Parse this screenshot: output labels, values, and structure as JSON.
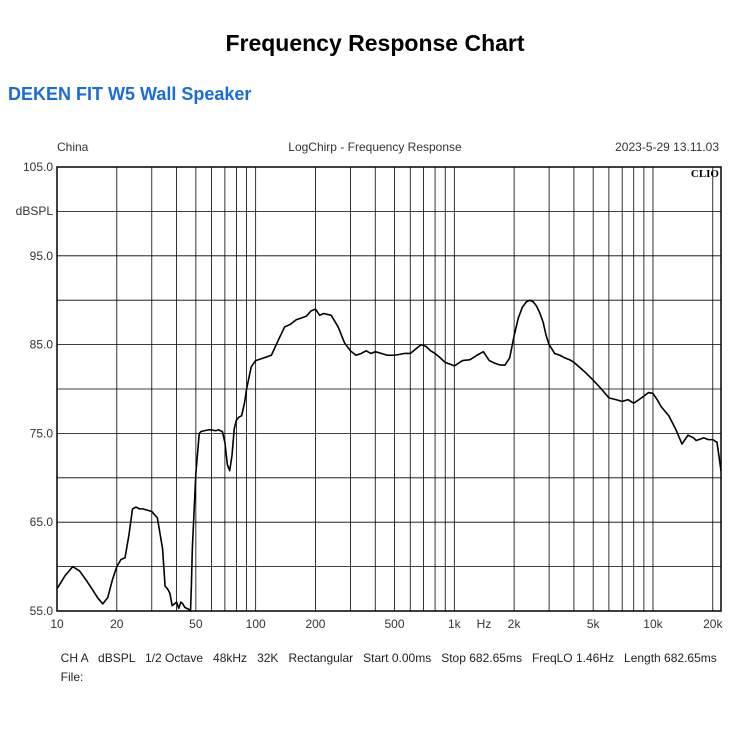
{
  "page": {
    "title": "Frequency Response Chart",
    "subtitle": "DEKEN FIT W5 Wall Speaker"
  },
  "colors": {
    "subtitle": "#1a6cd6",
    "curve": "#000000",
    "grid": "#000000"
  },
  "chart_data": {
    "type": "line",
    "title": "LogChirp - Frequency Response",
    "header_left": "China",
    "header_right": "2023-5-29 13.11.03",
    "brand": "CLIO",
    "ylabel": "dBSPL",
    "xunit": "Hz",
    "x_scale": "log",
    "grid": true,
    "xlim": [
      10,
      22000
    ],
    "ylim": [
      55,
      105
    ],
    "y_ticks": [
      "105.0",
      "95.0",
      "85.0",
      "75.0",
      "65.0",
      "55.0"
    ],
    "x_ticks": [
      "10",
      "20",
      "50",
      "100",
      "200",
      "500",
      "1k",
      "2k",
      "5k",
      "10k",
      "20k"
    ],
    "series": [
      {
        "x": [
          10,
          11,
          12,
          13,
          14,
          15,
          16,
          17,
          18,
          19,
          20,
          21,
          22,
          23,
          24,
          25,
          26,
          27,
          28,
          30,
          32,
          34,
          35,
          36,
          37,
          38,
          40,
          41,
          42,
          43,
          44,
          45,
          46,
          47,
          47.5,
          48,
          50,
          52,
          53,
          55,
          58,
          60,
          63,
          65,
          68,
          70,
          72,
          74,
          76,
          78,
          80,
          82,
          85,
          88,
          90,
          95,
          100,
          110,
          120,
          130,
          140,
          150,
          160,
          170,
          180,
          190,
          200,
          210,
          220,
          240,
          260,
          280,
          300,
          320,
          340,
          360,
          380,
          400,
          430,
          460,
          500,
          530,
          560,
          600,
          640,
          680,
          720,
          760,
          800,
          850,
          900,
          950,
          1000,
          1100,
          1200,
          1300,
          1400,
          1500,
          1600,
          1700,
          1800,
          1900,
          2000,
          2100,
          2200,
          2300,
          2400,
          2500,
          2600,
          2700,
          2800,
          2900,
          3000,
          3200,
          3400,
          3600,
          3800,
          4000,
          4500,
          5000,
          5500,
          6000,
          6500,
          7000,
          7500,
          8000,
          8500,
          9000,
          9500,
          10000,
          10500,
          11000,
          12000,
          13000,
          14000,
          15000,
          16000,
          16500,
          17000,
          18000,
          19000,
          20000,
          21000,
          22000
        ],
        "y": [
          57.5,
          59.0,
          60.0,
          59.5,
          58.5,
          57.5,
          56.5,
          55.8,
          56.5,
          58.5,
          60.0,
          60.8,
          61.0,
          63.5,
          66.5,
          66.7,
          66.5,
          66.5,
          66.4,
          66.2,
          65.5,
          62.0,
          57.8,
          57.5,
          57.0,
          55.6,
          56.0,
          55.3,
          56.0,
          55.8,
          55.4,
          55.3,
          55.2,
          55.0,
          58.0,
          62.0,
          70.5,
          75.0,
          75.2,
          75.3,
          75.4,
          75.4,
          75.3,
          75.4,
          75.2,
          74.0,
          71.5,
          70.8,
          72.5,
          75.5,
          76.5,
          76.8,
          77.0,
          78.5,
          80.0,
          82.5,
          83.2,
          83.5,
          83.8,
          85.5,
          87.0,
          87.3,
          87.8,
          88.0,
          88.2,
          88.8,
          89.0,
          88.3,
          88.5,
          88.3,
          87.0,
          85.2,
          84.3,
          83.8,
          84.0,
          84.3,
          84.0,
          84.2,
          84.0,
          83.8,
          83.8,
          83.9,
          84.0,
          84.0,
          84.5,
          85.0,
          84.8,
          84.3,
          84.0,
          83.5,
          83.0,
          82.8,
          82.6,
          83.2,
          83.3,
          83.8,
          84.2,
          83.2,
          82.9,
          82.7,
          82.7,
          83.5,
          86.0,
          88.0,
          89.2,
          89.8,
          90.0,
          89.8,
          89.3,
          88.5,
          87.5,
          86.0,
          85.0,
          84.0,
          83.8,
          83.5,
          83.3,
          83.0,
          82.0,
          81.0,
          80.0,
          79.0,
          78.8,
          78.6,
          78.8,
          78.4,
          78.8,
          79.2,
          79.6,
          79.5,
          78.8,
          78.0,
          77.0,
          75.5,
          73.8,
          74.8,
          74.5,
          74.2,
          74.3,
          74.5,
          74.3,
          74.3,
          74.0,
          70.8
        ]
      }
    ]
  },
  "footer": {
    "line1": [
      "CH A",
      "dBSPL",
      "1/2 Octave",
      "48kHz",
      "32K",
      "Rectangular",
      "Start 0.00ms",
      "Stop 682.65ms",
      "FreqLO 1.46Hz",
      "Length 682.65ms"
    ],
    "line2_label": "File:"
  }
}
